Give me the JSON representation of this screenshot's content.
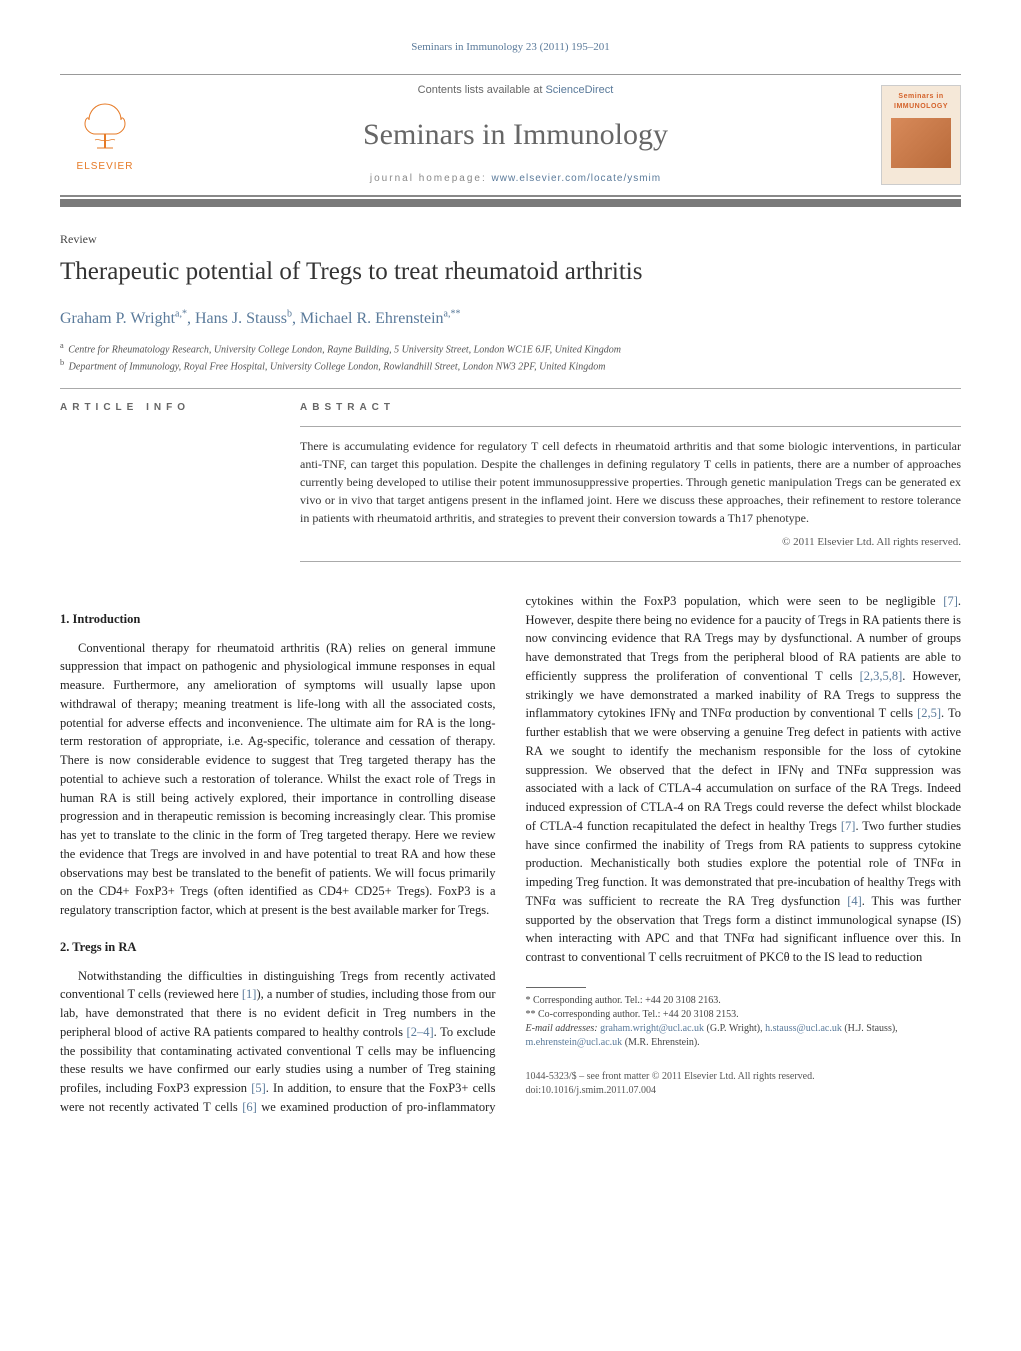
{
  "journal_ref": "Seminars in Immunology 23 (2011) 195–201",
  "masthead": {
    "publisher_name": "ELSEVIER",
    "contents_prefix": "Contents lists available at ",
    "contents_link": "ScienceDirect",
    "journal_title": "Seminars in Immunology",
    "homepage_prefix": "journal homepage: ",
    "homepage_url": "www.elsevier.com/locate/ysmim",
    "cover_label_top": "Seminars in",
    "cover_label_bottom": "IMMUNOLOGY"
  },
  "article": {
    "type": "Review",
    "title": "Therapeutic potential of Tregs to treat rheumatoid arthritis",
    "authors_html": "Graham P. Wright<sup>a,*</sup>, Hans J. Stauss<sup>b</sup>, Michael R. Ehrenstein<sup>a,**</sup>",
    "affiliations": [
      {
        "sup": "a",
        "text": "Centre for Rheumatology Research, University College London, Rayne Building, 5 University Street, London WC1E 6JF, United Kingdom"
      },
      {
        "sup": "b",
        "text": "Department of Immunology, Royal Free Hospital, University College London, Rowlandhill Street, London NW3 2PF, United Kingdom"
      }
    ]
  },
  "info_heading": "ARTICLE INFO",
  "abstract_heading": "ABSTRACT",
  "abstract_text": "There is accumulating evidence for regulatory T cell defects in rheumatoid arthritis and that some biologic interventions, in particular anti-TNF, can target this population. Despite the challenges in defining regulatory T cells in patients, there are a number of approaches currently being developed to utilise their potent immunosuppressive properties. Through genetic manipulation Tregs can be generated ex vivo or in vivo that target antigens present in the inflamed joint. Here we discuss these approaches, their refinement to restore tolerance in patients with rheumatoid arthritis, and strategies to prevent their conversion towards a Th17 phenotype.",
  "copyright": "© 2011 Elsevier Ltd. All rights reserved.",
  "sections": {
    "s1": {
      "heading": "1. Introduction",
      "p1": "Conventional therapy for rheumatoid arthritis (RA) relies on general immune suppression that impact on pathogenic and physiological immune responses in equal measure. Furthermore, any amelioration of symptoms will usually lapse upon withdrawal of therapy; meaning treatment is life-long with all the associated costs, potential for adverse effects and inconvenience. The ultimate aim for RA is the long-term restoration of appropriate, i.e. Ag-specific, tolerance and cessation of therapy. There is now considerable evidence to suggest that Treg targeted therapy has the potential to achieve such a restoration of tolerance. Whilst the exact role of Tregs in human RA is still being actively explored, their importance in controlling disease progression and in therapeutic remission is becoming increasingly clear. This promise has yet to translate to the clinic in the form of Treg targeted therapy. Here we review the evidence that Tregs are involved in and have potential to treat RA and how these observations may best be translated to the benefit of patients. We will focus primarily on the CD4+ FoxP3+ Tregs (often identified as CD4+ CD25+ Tregs). FoxP3 is a regulatory transcription factor, which at present is the best available marker for Tregs."
    },
    "s2": {
      "heading": "2. Tregs in RA",
      "p1_a": "Notwithstanding the difficulties in distinguishing Tregs from recently activated conventional T cells (reviewed here ",
      "p1_ref1": "[1]",
      "p1_b": "), a number of studies, including those from our lab, have demonstrated that there is no evident deficit in Treg numbers in the peripheral blood of active RA patients compared to healthy controls ",
      "p1_ref2": "[2–4]",
      "p1_c": ". To exclude the possibility that contaminating activated conventional T cells may be influencing these results we have confirmed our early studies using a number of Treg staining profiles, including FoxP3 expression ",
      "p1_ref3": "[5]",
      "p1_d": ". In addition, to ensure that the FoxP3+ cells were not recently activated T cells ",
      "p1_ref4": "[6]",
      "p1_e": " we examined production of pro-inflammatory cytokines within the FoxP3 population, which were seen to be negligible ",
      "p1_ref5": "[7]",
      "p1_f": ". However, despite there being no evidence for a paucity of Tregs in RA patients there is now convincing evidence that RA Tregs may by dysfunctional. A number of groups have demonstrated that Tregs from the peripheral blood of RA patients are able to efficiently suppress the proliferation of conventional T cells ",
      "p1_ref6": "[2,3,5,8]",
      "p1_g": ". However, strikingly we have demonstrated a marked inability of RA Tregs to suppress the inflammatory cytokines IFNγ and TNFα production by conventional T cells ",
      "p1_ref7": "[2,5]",
      "p1_h": ". To further establish that we were observing a genuine Treg defect in patients with active RA we sought to identify the mechanism responsible for the loss of cytokine suppression. We observed that the defect in IFNγ and TNFα suppression was associated with a lack of CTLA-4 accumulation on surface of the RA Tregs. Indeed induced expression of CTLA-4 on RA Tregs could reverse the defect whilst blockade of CTLA-4 function recapitulated the defect in healthy Tregs ",
      "p1_ref8": "[7]",
      "p1_i": ". Two further studies have since confirmed the inability of Tregs from RA patients to suppress cytokine production. Mechanistically both studies explore the potential role of TNFα in impeding Treg function. It was demonstrated that pre-incubation of healthy Tregs with TNFα was sufficient to recreate the RA Treg dysfunction ",
      "p1_ref9": "[4]",
      "p1_j": ". This was further supported by the observation that Tregs form a distinct immunological synapse (IS) when interacting with APC and that TNFα had significant influence over this. In contrast to conventional T cells recruitment of PKCθ to the IS lead to reduction"
    }
  },
  "footnotes": {
    "corr1": "* Corresponding author. Tel.: +44 20 3108 2163.",
    "corr2": "** Co-corresponding author. Tel.: +44 20 3108 2153.",
    "email_label": "E-mail addresses: ",
    "email1": "graham.wright@ucl.ac.uk",
    "email1_who": " (G.P. Wright), ",
    "email2": "h.stauss@ucl.ac.uk",
    "email2_who": " (H.J. Stauss), ",
    "email3": "m.ehrenstein@ucl.ac.uk",
    "email3_who": " (M.R. Ehrenstein)."
  },
  "footer": {
    "issn_line": "1044-5323/$ – see front matter © 2011 Elsevier Ltd. All rights reserved.",
    "doi_line": "doi:10.1016/j.smim.2011.07.004"
  },
  "colors": {
    "link": "#5a7a9a",
    "rule_gray": "#7a7a7a",
    "publisher_orange": "#e67a26",
    "body_text": "#222222",
    "muted": "#666666"
  }
}
